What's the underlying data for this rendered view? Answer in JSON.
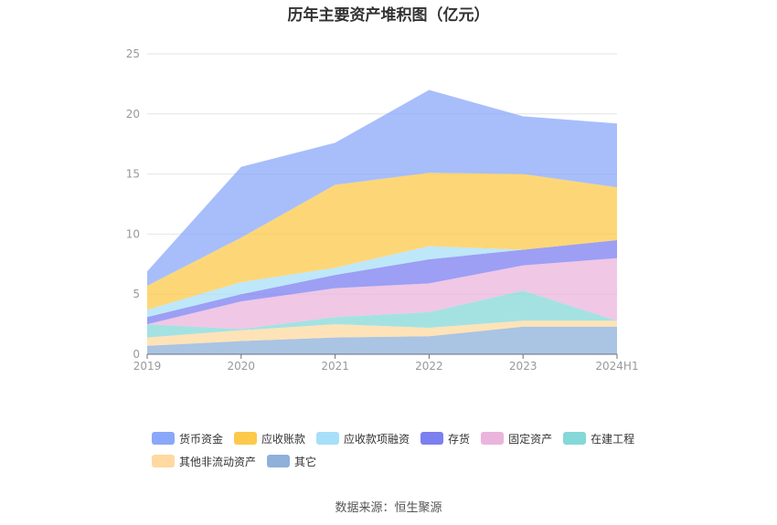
{
  "title": "历年主要资产堆积图（亿元）",
  "source": "数据来源：恒生聚源",
  "chart_data": {
    "type": "area",
    "stacked": true,
    "categories": [
      "2019",
      "2020",
      "2021",
      "2022",
      "2023",
      "2024H1"
    ],
    "ylim": [
      0,
      25
    ],
    "yticks": [
      0,
      5,
      10,
      15,
      20,
      25
    ],
    "grid": true,
    "legend_position": "bottom",
    "series": [
      {
        "name": "其它",
        "color": "#8eb0da",
        "values": [
          0.7,
          1.1,
          1.4,
          1.5,
          2.3,
          2.3
        ]
      },
      {
        "name": "其他非流动资产",
        "color": "#ffd9a0",
        "values": [
          0.7,
          0.9,
          1.1,
          0.7,
          0.5,
          0.5
        ]
      },
      {
        "name": "在建工程",
        "color": "#85d8d8",
        "values": [
          1.1,
          0.1,
          0.6,
          1.3,
          2.5,
          0.0
        ]
      },
      {
        "name": "固定资产",
        "color": "#ebb4dc",
        "values": [
          0.0,
          2.3,
          2.4,
          2.4,
          2.1,
          5.2
        ]
      },
      {
        "name": "存货",
        "color": "#7b7ff0",
        "values": [
          0.6,
          0.6,
          1.1,
          2.0,
          1.3,
          1.5
        ]
      },
      {
        "name": "应收款项融资",
        "color": "#a8dff8",
        "values": [
          0.6,
          1.0,
          0.6,
          1.1,
          0.0,
          0.0
        ]
      },
      {
        "name": "应收账款",
        "color": "#fcc94a",
        "values": [
          2.0,
          3.7,
          6.9,
          6.1,
          6.3,
          4.4
        ]
      },
      {
        "name": "货币资金",
        "color": "#8aa8fa",
        "values": [
          1.2,
          5.9,
          3.5,
          6.9,
          4.8,
          5.3
        ]
      }
    ]
  }
}
